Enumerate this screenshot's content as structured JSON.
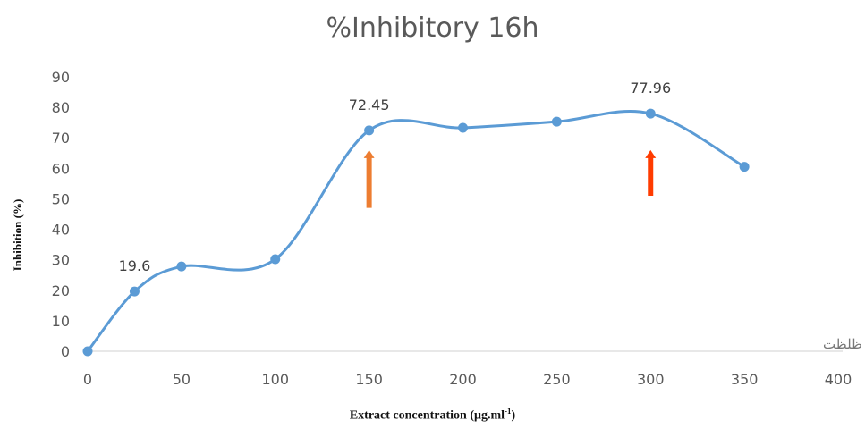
{
  "chart_data": {
    "type": "line",
    "title": "%Inhibitory 16h",
    "xlabel": "Extract concentration (μg.ml",
    "xlabel_sup": "-1",
    "xlabel_end": ")",
    "ylabel": "Inhibition (%)",
    "xlim": [
      0,
      400
    ],
    "ylim": [
      0,
      90
    ],
    "x_ticks": [
      0,
      50,
      100,
      150,
      200,
      250,
      300,
      350,
      400
    ],
    "y_ticks": [
      0,
      10,
      20,
      30,
      40,
      50,
      60,
      70,
      80,
      90
    ],
    "grid": false,
    "smooth": true,
    "series": [
      {
        "x": [
          0,
          25,
          50,
          100,
          150,
          200,
          250,
          300,
          350
        ],
        "y": [
          0,
          19.6,
          27.8,
          30.2,
          72.45,
          73.3,
          75.3,
          77.96,
          60.5
        ],
        "color": "#5b9bd5"
      }
    ],
    "data_labels": [
      {
        "x": 25,
        "y": 19.6,
        "text": "19.6"
      },
      {
        "x": 150,
        "y": 72.45,
        "text": "72.45"
      },
      {
        "x": 300,
        "y": 77.96,
        "text": "77.96"
      }
    ],
    "annotations": [
      {
        "type": "arrow",
        "x": 150,
        "y_from": 47,
        "y_to": 66,
        "color": "#ed7d31"
      },
      {
        "type": "arrow",
        "x": 300,
        "y_from": 51,
        "y_to": 66,
        "color": "#ff3b00"
      }
    ],
    "axis_note": "ظلظت"
  }
}
